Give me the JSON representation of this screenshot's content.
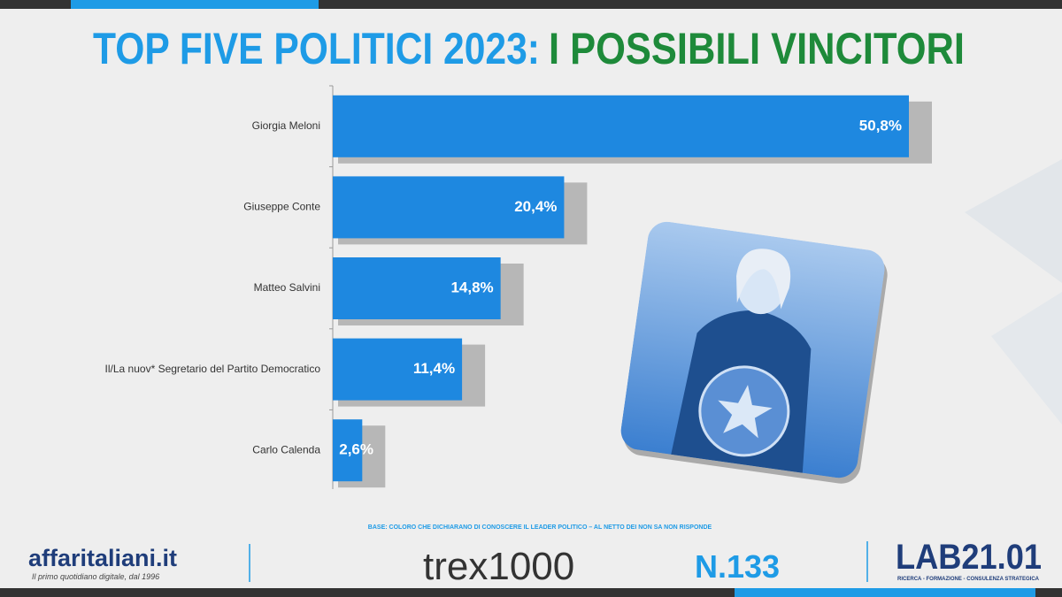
{
  "chart_data": {
    "type": "bar",
    "orientation": "horizontal",
    "title_part1": "TOP FIVE POLITICI 2023:",
    "title_part2": "I POSSIBILI VINCITORI",
    "categories": [
      "Giorgia Meloni",
      "Giuseppe Conte",
      "Matteo Salvini",
      "Il/La nuov* Segretario del Partito Democratico",
      "Carlo Calenda"
    ],
    "values": [
      50.8,
      20.4,
      14.8,
      11.4,
      2.6
    ],
    "value_labels": [
      "50,8%",
      "20,4%",
      "14,8%",
      "11,4%",
      "2,6%"
    ],
    "color": "#1e88e0",
    "note": "BASE: COLORO CHE DICHIARANO DI CONOSCERE IL LEADER POLITICO – AL NETTO DEI NON SA NON RISPONDE"
  },
  "footer": {
    "brand": "affaritaliani.it",
    "tagline": "Il primo quotidiano digitale, dal 1996",
    "survey": "trex1000",
    "number": "N.133",
    "lab": "LAB21.01",
    "lab_tagline": "RICERCA - FORMAZIONE - CONSULENZA STRATEGICA"
  }
}
